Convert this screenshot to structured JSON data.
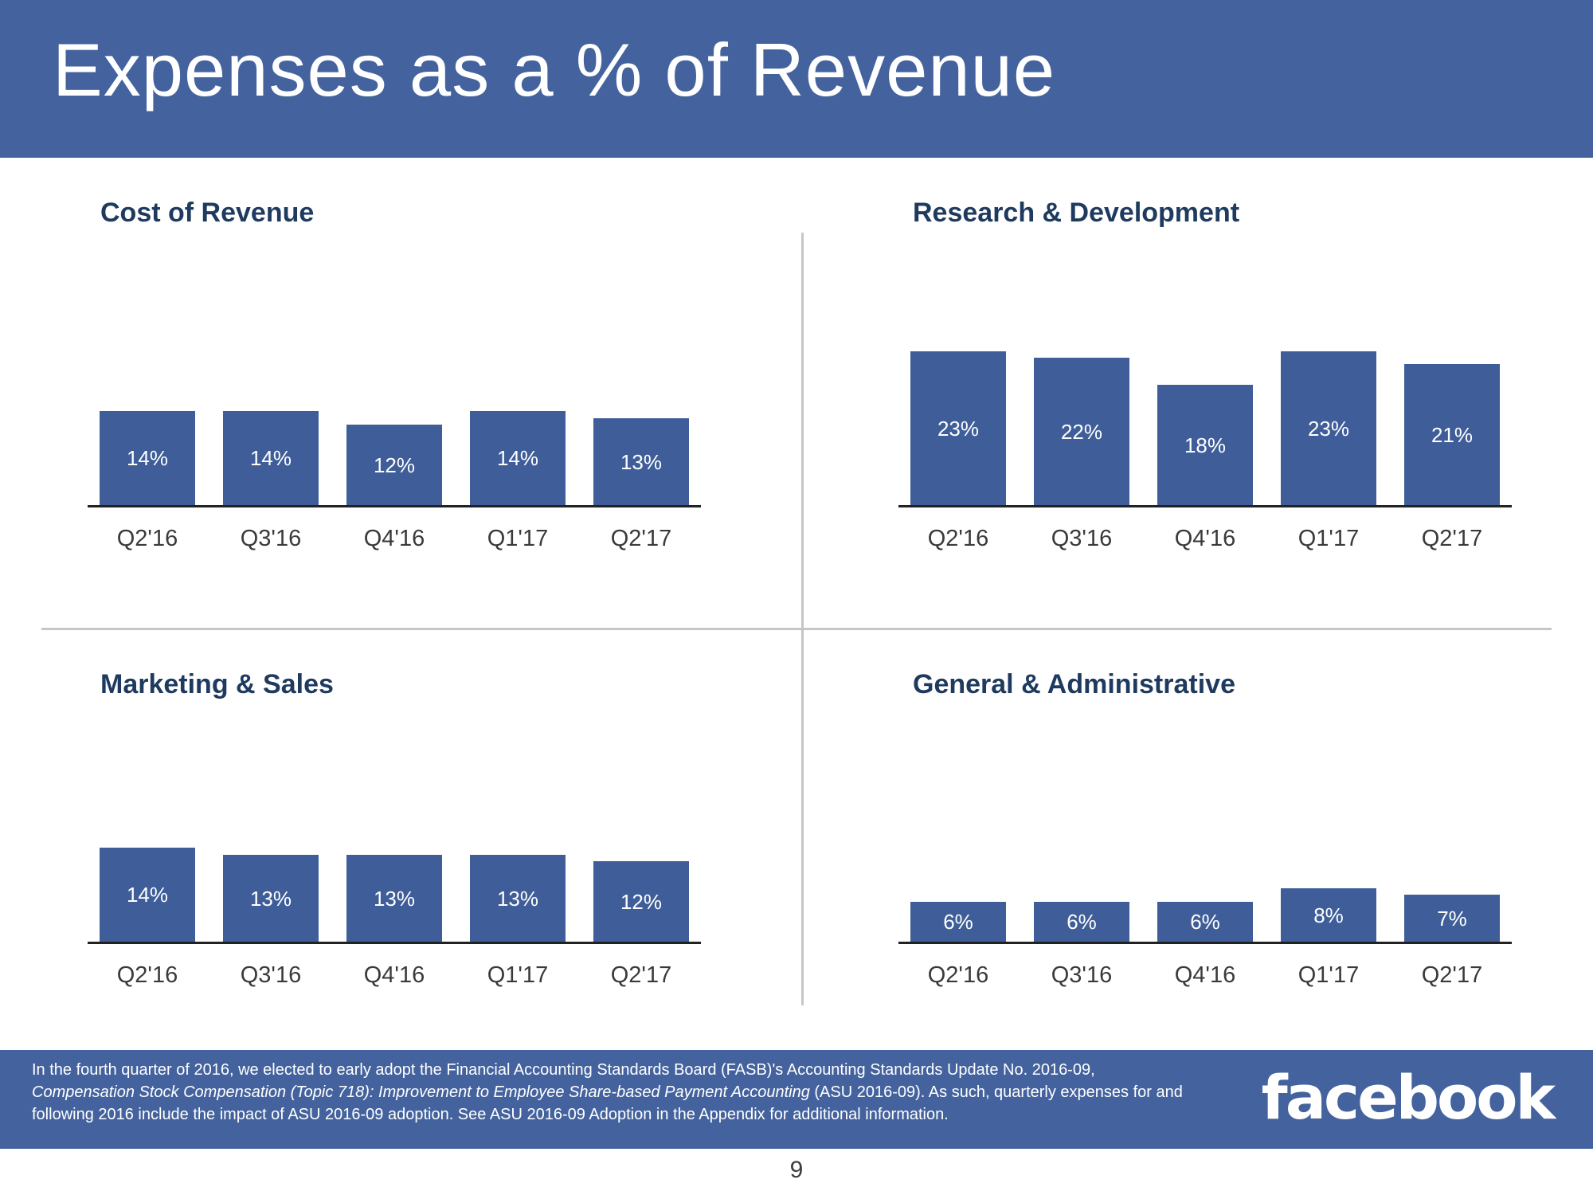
{
  "slide": {
    "title": "Expenses as a % of Revenue",
    "page_number": "9",
    "brand": "facebook"
  },
  "colors": {
    "header_blue": "#44639e",
    "footer_blue": "#44639e",
    "bar_blue": "#3f5e99",
    "chart_title_navy": "#1e3a5f",
    "divider_gray": "#c6c6c6",
    "axis_dark": "#222222",
    "label_white": "#ffffff"
  },
  "chart_data": [
    {
      "type": "bar",
      "title": "Cost of Revenue",
      "categories": [
        "Q2'16",
        "Q3'16",
        "Q4'16",
        "Q1'17",
        "Q2'17"
      ],
      "values": [
        14,
        14,
        12,
        14,
        13
      ],
      "unit": "%",
      "ylim": [
        0,
        27
      ],
      "xlabel": "",
      "ylabel": "",
      "grid": false,
      "legend": "none",
      "data_labels": "inside-center-white"
    },
    {
      "type": "bar",
      "title": "Research & Development",
      "categories": [
        "Q2'16",
        "Q3'16",
        "Q4'16",
        "Q1'17",
        "Q2'17"
      ],
      "values": [
        23,
        22,
        18,
        23,
        21
      ],
      "unit": "%",
      "ylim": [
        0,
        27
      ],
      "xlabel": "",
      "ylabel": "",
      "grid": false,
      "legend": "none",
      "data_labels": "inside-center-white"
    },
    {
      "type": "bar",
      "title": "Marketing & Sales",
      "categories": [
        "Q2'16",
        "Q3'16",
        "Q4'16",
        "Q1'17",
        "Q2'17"
      ],
      "values": [
        14,
        13,
        13,
        13,
        12
      ],
      "unit": "%",
      "ylim": [
        0,
        27
      ],
      "xlabel": "",
      "ylabel": "",
      "grid": false,
      "legend": "none",
      "data_labels": "inside-center-white"
    },
    {
      "type": "bar",
      "title": "General & Administrative",
      "categories": [
        "Q2'16",
        "Q3'16",
        "Q4'16",
        "Q1'17",
        "Q2'17"
      ],
      "values": [
        6,
        6,
        6,
        8,
        7
      ],
      "unit": "%",
      "ylim": [
        0,
        27
      ],
      "xlabel": "",
      "ylabel": "",
      "grid": false,
      "legend": "none",
      "data_labels": "inside-center-white"
    }
  ],
  "footnote": {
    "part1": "In the fourth quarter of 2016, we elected to early adopt the Financial Accounting Standards Board (FASB)'s Accounting Standards Update No. 2016-09,",
    "part2_italic": "Compensation Stock Compensation (Topic 718): Improvement to Employee Share-based Payment Accounting",
    "part3": "(ASU 2016-09). As such, quarterly expenses for and following 2016 include the impact of ASU 2016-09 adoption. See ASU 2016-09 Adoption in the Appendix for additional information."
  }
}
